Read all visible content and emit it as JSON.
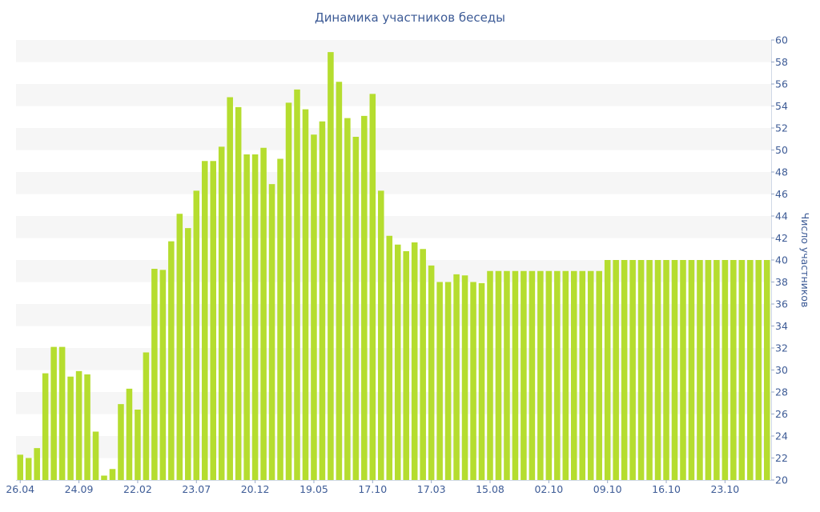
{
  "chart_data": {
    "type": "bar",
    "title": "Динамика участников беседы",
    "ylabel": "Число участников",
    "xlabel": "",
    "ylim": [
      20,
      60
    ],
    "y_ticks": [
      20,
      22,
      24,
      26,
      28,
      30,
      32,
      34,
      36,
      38,
      40,
      42,
      44,
      46,
      48,
      50,
      52,
      54,
      56,
      58,
      60
    ],
    "x_tick_labels": [
      "26.04",
      "24.09",
      "22.02",
      "23.07",
      "20.12",
      "19.05",
      "17.10",
      "17.03",
      "15.08",
      "02.10",
      "09.10",
      "16.10",
      "23.10"
    ],
    "x_tick_indices": [
      0,
      7,
      14,
      21,
      28,
      35,
      42,
      49,
      56,
      63,
      70,
      77,
      84
    ],
    "y_axis_side": "right",
    "grid": "horizontal alternating bands",
    "legend": "none",
    "bar_color": "#b5dd2f",
    "band_color": "#f6f6f6",
    "text_color": "#3d5b96",
    "values": [
      22.3,
      22,
      22.9,
      29.7,
      32.1,
      32.1,
      29.4,
      29.9,
      29.6,
      24.4,
      20.4,
      21,
      26.9,
      28.3,
      26.4,
      31.6,
      39.2,
      39.1,
      41.7,
      44.2,
      42.9,
      46.3,
      49,
      49,
      50.3,
      54.8,
      53.9,
      49.6,
      49.6,
      50.2,
      46.9,
      49.2,
      54.3,
      55.5,
      53.7,
      51.4,
      52.6,
      58.9,
      56.2,
      52.9,
      51.2,
      53.1,
      55.1,
      46.3,
      42.2,
      41.4,
      40.8,
      41.6,
      41,
      39.5,
      38,
      38,
      38.7,
      38.6,
      38,
      37.9,
      39,
      39,
      39,
      39,
      39,
      39,
      39,
      39,
      39,
      39,
      39,
      39,
      39,
      39,
      40,
      40,
      40,
      40,
      40,
      40,
      40,
      40,
      40,
      40,
      40,
      40,
      40,
      40,
      40,
      40,
      40,
      40,
      40,
      40
    ]
  }
}
